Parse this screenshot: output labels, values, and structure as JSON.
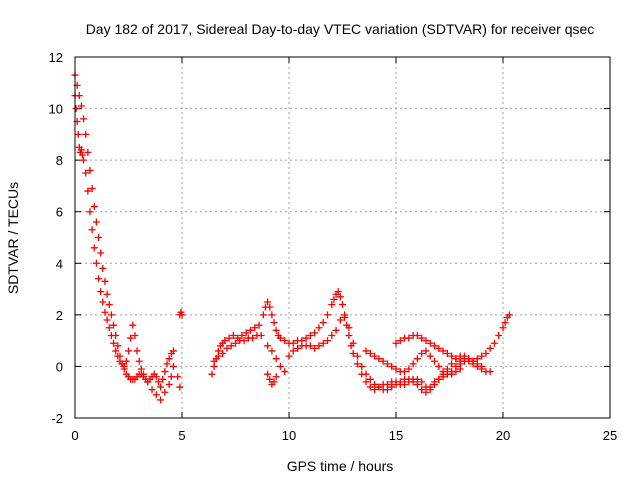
{
  "chart_data": {
    "type": "scatter",
    "title": "Day 182 of 2017, Sidereal Day-to-day VTEC variation (SDTVAR) for receiver qsec",
    "xlabel": "GPS time / hours",
    "ylabel": "SDTVAR / TECUs",
    "xlim": [
      0,
      25
    ],
    "ylim": [
      -2,
      12
    ],
    "xticks": [
      0,
      5,
      10,
      15,
      20,
      25
    ],
    "yticks": [
      -2,
      0,
      2,
      4,
      6,
      8,
      10,
      12
    ],
    "grid": true,
    "marker": "+",
    "color": "#ff0000",
    "series": [
      {
        "name": "SDTVAR",
        "x": [
          0.0,
          0.1,
          0.2,
          0.3,
          0.4,
          0.5,
          0.6,
          0.7,
          0.8,
          0.9,
          1.0,
          1.1,
          1.2,
          1.3,
          1.4,
          1.5,
          1.6,
          1.7,
          1.8,
          1.9,
          2.0,
          2.1,
          2.2,
          2.3,
          2.4,
          2.5,
          2.6,
          2.7,
          2.8,
          2.9,
          3.0,
          3.1,
          3.2,
          3.3,
          3.4,
          3.5,
          3.6,
          3.7,
          3.8,
          3.9,
          4.0,
          4.1,
          4.2,
          4.3,
          4.4,
          4.5,
          4.6,
          4.8,
          4.9,
          0.0,
          0.05,
          0.1,
          0.15,
          0.2,
          0.25,
          0.3,
          0.35,
          0.4,
          0.5,
          0.6,
          0.7,
          0.8,
          0.9,
          1.0,
          1.1,
          1.2,
          1.3,
          1.4,
          1.5,
          1.6,
          1.7,
          1.8,
          1.9,
          2.0,
          2.1,
          2.2,
          2.3,
          2.4,
          2.5,
          2.6,
          2.7,
          2.8,
          2.9,
          3.0,
          3.1,
          3.2,
          3.4,
          3.6,
          3.8,
          4.0,
          4.2,
          4.4,
          4.5,
          4.6,
          6.4,
          6.5,
          6.6,
          6.7,
          6.8,
          6.9,
          7.0,
          7.2,
          7.4,
          7.6,
          7.8,
          8.0,
          8.2,
          8.4,
          8.6,
          8.8,
          8.9,
          9.0,
          9.1,
          9.2,
          9.3,
          9.4,
          9.5,
          9.6,
          9.8,
          10.0,
          10.2,
          10.4,
          10.6,
          10.8,
          11.0,
          11.2,
          11.4,
          11.6,
          11.8,
          12.0,
          12.1,
          12.2,
          12.3,
          12.4,
          12.5,
          12.6,
          12.7,
          12.8,
          12.9,
          13.0,
          13.2,
          13.4,
          13.6,
          13.8,
          14.0,
          14.2,
          14.4,
          14.6,
          14.8,
          15.0,
          15.2,
          15.4,
          15.6,
          15.8,
          16.0,
          16.2,
          16.4,
          16.6,
          16.8,
          17.0,
          17.2,
          17.4,
          17.6,
          17.8,
          18.0,
          18.2,
          18.4,
          18.6,
          18.8,
          19.0,
          19.2,
          19.4,
          19.6,
          19.8,
          20.0,
          20.1,
          20.2,
          20.3,
          6.5,
          6.7,
          6.9,
          7.1,
          7.3,
          7.5,
          7.7,
          7.9,
          8.1,
          8.3,
          8.5,
          8.7,
          9.0,
          9.2,
          9.4,
          9.6,
          9.8,
          10.0,
          10.2,
          10.4,
          10.6,
          10.8,
          11.0,
          11.2,
          11.4,
          11.6,
          11.8,
          12.0,
          12.2,
          12.4,
          12.6,
          12.8,
          13.0,
          13.2,
          13.4,
          13.6,
          13.8,
          14.0,
          14.2,
          14.4,
          14.6,
          14.8,
          15.0,
          15.2,
          15.4,
          15.6,
          15.8,
          16.0,
          16.2,
          16.4,
          16.6,
          16.8,
          17.0,
          17.2,
          17.4,
          17.6,
          17.8,
          18.0,
          18.2,
          18.4,
          18.6,
          18.8,
          19.0,
          15.0,
          15.2,
          15.4,
          15.6,
          15.8,
          16.0,
          16.2,
          16.4,
          16.6,
          16.8,
          17.0,
          17.2,
          17.4,
          17.6,
          17.8,
          18.0,
          18.2,
          18.4,
          18.6,
          18.8,
          19.0,
          19.2,
          19.4,
          13.6,
          13.8,
          14.0,
          14.2,
          14.4,
          14.6,
          14.8,
          15.0,
          15.2,
          15.4,
          15.6,
          15.8,
          16.0,
          16.2,
          16.4,
          16.6,
          16.8,
          17.0,
          17.2,
          17.4,
          17.6,
          17.8,
          18.0,
          9.0,
          9.1,
          9.2,
          9.3,
          9.4,
          4.9,
          4.95,
          5.0
        ],
        "y": [
          11.3,
          10.9,
          10.5,
          10.1,
          9.6,
          9.0,
          8.3,
          7.6,
          6.9,
          6.2,
          5.6,
          5.0,
          4.4,
          3.8,
          3.3,
          2.8,
          2.4,
          2.0,
          1.6,
          1.2,
          0.8,
          0.4,
          0.1,
          -0.1,
          -0.3,
          -0.4,
          -0.5,
          -0.5,
          -0.5,
          -0.4,
          -0.3,
          -0.3,
          -0.4,
          -0.5,
          -0.6,
          -0.5,
          -0.4,
          -0.3,
          -0.4,
          -0.6,
          -0.8,
          -0.5,
          -0.2,
          0.1,
          0.3,
          0.5,
          0.6,
          -0.4,
          -0.8,
          10.5,
          10.0,
          9.5,
          9.0,
          8.5,
          8.3,
          8.4,
          8.2,
          8.0,
          7.5,
          6.8,
          6.0,
          5.3,
          4.6,
          4.0,
          3.4,
          2.9,
          2.5,
          2.1,
          1.8,
          1.5,
          1.2,
          0.9,
          0.6,
          0.4,
          0.2,
          0.1,
          0.0,
          0.2,
          0.6,
          1.1,
          1.6,
          1.2,
          0.6,
          0.2,
          -0.1,
          -0.3,
          -0.6,
          -0.9,
          -1.1,
          -1.3,
          -1.0,
          -0.7,
          -0.4,
          0.0,
          -0.3,
          0.0,
          0.3,
          0.6,
          0.8,
          0.9,
          1.0,
          1.1,
          1.2,
          1.1,
          1.2,
          1.3,
          1.4,
          1.5,
          1.6,
          2.0,
          2.3,
          2.5,
          2.3,
          2.0,
          1.7,
          1.4,
          1.2,
          1.1,
          1.0,
          0.9,
          0.9,
          1.0,
          1.0,
          1.1,
          1.2,
          1.3,
          1.5,
          1.7,
          2.0,
          2.4,
          2.6,
          2.8,
          2.9,
          2.7,
          2.4,
          2.0,
          1.6,
          1.2,
          0.8,
          0.5,
          0.1,
          -0.3,
          -0.6,
          -0.8,
          -0.9,
          -0.8,
          -0.7,
          -0.7,
          -0.6,
          -0.6,
          -0.7,
          -0.7,
          -0.6,
          -0.5,
          -0.5,
          -0.6,
          -0.8,
          -0.9,
          -0.7,
          -0.5,
          -0.4,
          -0.3,
          -0.2,
          0.0,
          0.1,
          0.2,
          0.3,
          0.2,
          0.3,
          0.4,
          0.5,
          0.7,
          0.9,
          1.2,
          1.5,
          1.7,
          1.9,
          2.0,
          0.2,
          0.4,
          0.5,
          0.7,
          0.8,
          0.9,
          1.0,
          1.0,
          1.1,
          1.1,
          1.2,
          1.2,
          0.8,
          0.6,
          0.3,
          0.0,
          -0.2,
          0.4,
          0.6,
          0.7,
          0.8,
          0.8,
          0.8,
          0.7,
          0.8,
          0.9,
          1.0,
          1.2,
          1.4,
          1.8,
          1.9,
          1.5,
          0.9,
          0.4,
          0.0,
          -0.3,
          -0.5,
          -0.7,
          -0.8,
          -0.9,
          -0.9,
          -0.8,
          -0.7,
          -0.6,
          -0.5,
          -0.5,
          -0.6,
          -0.7,
          -0.9,
          -1.0,
          -0.8,
          -0.6,
          -0.5,
          -0.3,
          -0.1,
          0.1,
          0.3,
          0.4,
          0.4,
          0.3,
          0.2,
          0.1,
          0.0,
          0.9,
          1.0,
          1.1,
          1.1,
          1.2,
          1.2,
          1.1,
          1.0,
          0.9,
          0.8,
          0.7,
          0.6,
          0.5,
          0.4,
          0.3,
          0.2,
          0.3,
          0.2,
          0.1,
          0.0,
          -0.1,
          -0.2,
          -0.2,
          0.6,
          0.5,
          0.4,
          0.3,
          0.2,
          0.1,
          0.0,
          -0.1,
          -0.2,
          -0.2,
          -0.1,
          0.1,
          0.3,
          0.5,
          0.6,
          0.4,
          0.2,
          0.0,
          -0.2,
          -0.3,
          -0.3,
          -0.2,
          -0.1,
          -0.3,
          -0.5,
          -0.7,
          -0.6,
          -0.4,
          2.0,
          2.1,
          2.0
        ]
      }
    ]
  }
}
